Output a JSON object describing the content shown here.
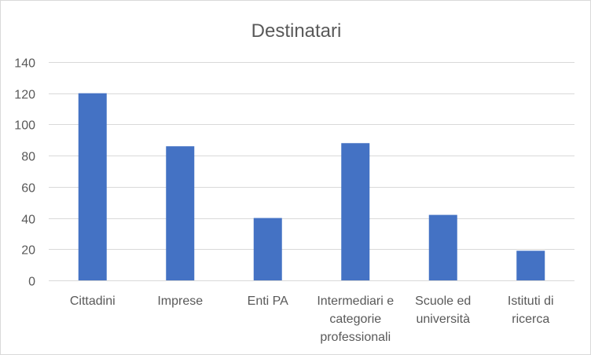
{
  "chart_data": {
    "type": "bar",
    "title": "Destinatari",
    "categories": [
      [
        "Cittadini"
      ],
      [
        "Imprese"
      ],
      [
        "Enti PA"
      ],
      [
        "Intermediari e",
        "categorie",
        "professionali"
      ],
      [
        "Scuole ed",
        "università"
      ],
      [
        "Istituti di",
        "ricerca"
      ]
    ],
    "values": [
      120,
      86,
      40,
      88,
      42,
      19
    ],
    "ylim": [
      0,
      140
    ],
    "yticks": [
      0,
      20,
      40,
      60,
      80,
      100,
      120,
      140
    ],
    "grid": true,
    "legend": "none",
    "bar_color": "#4472C4"
  }
}
